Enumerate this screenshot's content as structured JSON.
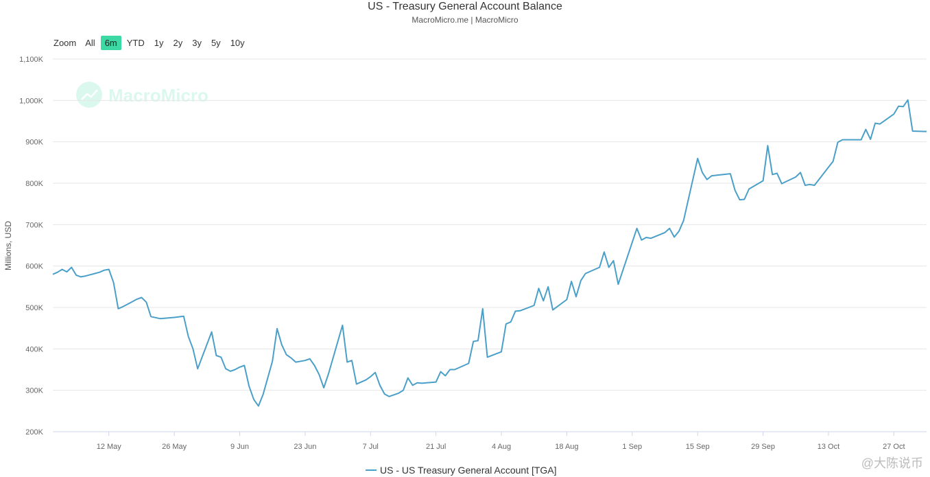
{
  "chart": {
    "title": "US - Treasury General Account Balance",
    "subtitle": "MacroMicro.me | MacroMicro",
    "watermark": "MacroMicro",
    "corner_mark": "@大陈说币"
  },
  "range_selector": {
    "zoom_label": "Zoom",
    "buttons": [
      "All",
      "6m",
      "YTD",
      "1y",
      "2y",
      "3y",
      "5y",
      "10y"
    ],
    "active": "6m",
    "active_color": "#3dd9a4"
  },
  "chart_data": {
    "type": "line",
    "title": "US - Treasury General Account Balance",
    "ylabel": "Millions, USD",
    "ylim": [
      200000,
      1100000
    ],
    "ytick_labels": [
      "200K",
      "300K",
      "400K",
      "500K",
      "600K",
      "700K",
      "800K",
      "900K",
      "1,000K",
      "1,100K"
    ],
    "xtick_labels": [
      "12 May",
      "26 May",
      "9 Jun",
      "23 Jun",
      "7 Jul",
      "21 Jul",
      "4 Aug",
      "18 Aug",
      "1 Sep",
      "15 Sep",
      "29 Sep",
      "13 Oct",
      "27 Oct"
    ],
    "x_start": "2025-04-30",
    "x_ticks": [
      "2025-05-12",
      "2025-05-26",
      "2025-06-09",
      "2025-06-23",
      "2025-07-07",
      "2025-07-21",
      "2025-08-04",
      "2025-08-18",
      "2025-09-01",
      "2025-09-15",
      "2025-09-29",
      "2025-10-13",
      "2025-10-27"
    ],
    "grid": true,
    "legend": "bottom-center",
    "series": [
      {
        "name": "US - US Treasury General Account [TGA]",
        "color": "#4a9fc9",
        "points": [
          [
            "2025-04-30",
            580000
          ],
          [
            "2025-05-01",
            585000
          ],
          [
            "2025-05-02",
            592000
          ],
          [
            "2025-05-03",
            586000
          ],
          [
            "2025-05-04",
            597000
          ],
          [
            "2025-05-05",
            578000
          ],
          [
            "2025-05-06",
            574000
          ],
          [
            "2025-05-07",
            576000
          ],
          [
            "2025-05-08",
            579000
          ],
          [
            "2025-05-09",
            582000
          ],
          [
            "2025-05-10",
            585000
          ],
          [
            "2025-05-11",
            590000
          ],
          [
            "2025-05-12",
            592000
          ],
          [
            "2025-05-13",
            560000
          ],
          [
            "2025-05-14",
            497000
          ],
          [
            "2025-05-15",
            502000
          ],
          [
            "2025-05-16",
            508000
          ],
          [
            "2025-05-17",
            514000
          ],
          [
            "2025-05-18",
            520000
          ],
          [
            "2025-05-19",
            524000
          ],
          [
            "2025-05-20",
            513000
          ],
          [
            "2025-05-21",
            478000
          ],
          [
            "2025-05-23",
            473000
          ],
          [
            "2025-05-26",
            476000
          ],
          [
            "2025-05-28",
            479000
          ],
          [
            "2025-05-29",
            430000
          ],
          [
            "2025-05-30",
            400000
          ],
          [
            "2025-05-31",
            352000
          ],
          [
            "2025-06-03",
            441000
          ],
          [
            "2025-06-04",
            384000
          ],
          [
            "2025-06-05",
            380000
          ],
          [
            "2025-06-06",
            352000
          ],
          [
            "2025-06-07",
            346000
          ],
          [
            "2025-06-08",
            350000
          ],
          [
            "2025-06-09",
            356000
          ],
          [
            "2025-06-10",
            360000
          ],
          [
            "2025-06-11",
            310000
          ],
          [
            "2025-06-12",
            278000
          ],
          [
            "2025-06-13",
            262000
          ],
          [
            "2025-06-14",
            290000
          ],
          [
            "2025-06-16",
            370000
          ],
          [
            "2025-06-17",
            449000
          ],
          [
            "2025-06-18",
            410000
          ],
          [
            "2025-06-19",
            386000
          ],
          [
            "2025-06-20",
            378000
          ],
          [
            "2025-06-21",
            368000
          ],
          [
            "2025-06-23",
            372000
          ],
          [
            "2025-06-24",
            376000
          ],
          [
            "2025-06-25",
            360000
          ],
          [
            "2025-06-26",
            338000
          ],
          [
            "2025-06-27",
            306000
          ],
          [
            "2025-06-28",
            340000
          ],
          [
            "2025-07-01",
            457000
          ],
          [
            "2025-07-02",
            368000
          ],
          [
            "2025-07-03",
            372000
          ],
          [
            "2025-07-04",
            315000
          ],
          [
            "2025-07-06",
            325000
          ],
          [
            "2025-07-07",
            333000
          ],
          [
            "2025-07-08",
            343000
          ],
          [
            "2025-07-09",
            312000
          ],
          [
            "2025-07-10",
            291000
          ],
          [
            "2025-07-11",
            285000
          ],
          [
            "2025-07-13",
            293000
          ],
          [
            "2025-07-14",
            300000
          ],
          [
            "2025-07-15",
            330000
          ],
          [
            "2025-07-16",
            312000
          ],
          [
            "2025-07-17",
            318000
          ],
          [
            "2025-07-18",
            317000
          ],
          [
            "2025-07-19",
            318000
          ],
          [
            "2025-07-21",
            320000
          ],
          [
            "2025-07-22",
            345000
          ],
          [
            "2025-07-23",
            335000
          ],
          [
            "2025-07-24",
            350000
          ],
          [
            "2025-07-25",
            350000
          ],
          [
            "2025-07-26",
            355000
          ],
          [
            "2025-07-27",
            360000
          ],
          [
            "2025-07-28",
            365000
          ],
          [
            "2025-07-29",
            418000
          ],
          [
            "2025-07-30",
            420000
          ],
          [
            "2025-07-31",
            497000
          ],
          [
            "2025-08-01",
            380000
          ],
          [
            "2025-08-04",
            393000
          ],
          [
            "2025-08-05",
            460000
          ],
          [
            "2025-08-06",
            465000
          ],
          [
            "2025-08-07",
            491000
          ],
          [
            "2025-08-08",
            492000
          ],
          [
            "2025-08-11",
            505000
          ],
          [
            "2025-08-12",
            546000
          ],
          [
            "2025-08-13",
            516000
          ],
          [
            "2025-08-14",
            550000
          ],
          [
            "2025-08-15",
            494000
          ],
          [
            "2025-08-18",
            519000
          ],
          [
            "2025-08-19",
            563000
          ],
          [
            "2025-08-20",
            526000
          ],
          [
            "2025-08-21",
            565000
          ],
          [
            "2025-08-22",
            582000
          ],
          [
            "2025-08-25",
            597000
          ],
          [
            "2025-08-26",
            634000
          ],
          [
            "2025-08-27",
            597000
          ],
          [
            "2025-08-28",
            613000
          ],
          [
            "2025-08-29",
            556000
          ],
          [
            "2025-09-02",
            691000
          ],
          [
            "2025-09-03",
            663000
          ],
          [
            "2025-09-04",
            669000
          ],
          [
            "2025-09-05",
            667000
          ],
          [
            "2025-09-08",
            681000
          ],
          [
            "2025-09-09",
            691000
          ],
          [
            "2025-09-10",
            670000
          ],
          [
            "2025-09-11",
            684000
          ],
          [
            "2025-09-12",
            710000
          ],
          [
            "2025-09-15",
            860000
          ],
          [
            "2025-09-16",
            826000
          ],
          [
            "2025-09-17",
            809000
          ],
          [
            "2025-09-18",
            818000
          ],
          [
            "2025-09-22",
            823000
          ],
          [
            "2025-09-23",
            783000
          ],
          [
            "2025-09-24",
            760000
          ],
          [
            "2025-09-25",
            761000
          ],
          [
            "2025-09-26",
            786000
          ],
          [
            "2025-09-29",
            806000
          ],
          [
            "2025-09-30",
            891000
          ],
          [
            "2025-10-01",
            821000
          ],
          [
            "2025-10-02",
            824000
          ],
          [
            "2025-10-03",
            799000
          ],
          [
            "2025-10-06",
            815000
          ],
          [
            "2025-10-07",
            826000
          ],
          [
            "2025-10-08",
            795000
          ],
          [
            "2025-10-09",
            797000
          ],
          [
            "2025-10-10",
            795000
          ],
          [
            "2025-10-14",
            853000
          ],
          [
            "2025-10-15",
            899000
          ],
          [
            "2025-10-16",
            905000
          ],
          [
            "2025-10-20",
            905000
          ],
          [
            "2025-10-21",
            930000
          ],
          [
            "2025-10-22",
            906000
          ],
          [
            "2025-10-23",
            945000
          ],
          [
            "2025-10-24",
            943000
          ],
          [
            "2025-10-27",
            967000
          ],
          [
            "2025-10-28",
            986000
          ],
          [
            "2025-10-29",
            985000
          ],
          [
            "2025-10-30",
            1001000
          ],
          [
            "2025-10-31",
            926000
          ],
          [
            "2025-11-03",
            925000
          ]
        ]
      }
    ]
  }
}
